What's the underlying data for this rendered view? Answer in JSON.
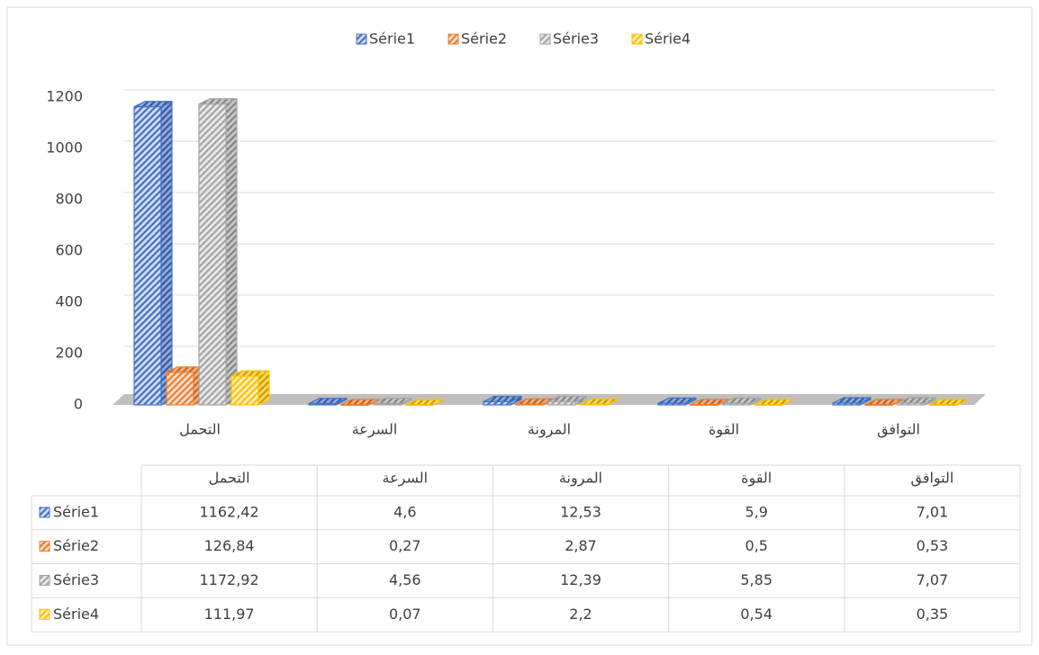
{
  "chart_data": {
    "type": "bar3d",
    "categories": [
      "التحمل",
      "السرعة",
      "المرونة",
      "القوة",
      "التوافق"
    ],
    "series": [
      {
        "name": "Série1",
        "color": "#4472c4",
        "values": [
          1162.42,
          4.6,
          12.53,
          5.9,
          7.01
        ],
        "value_labels": [
          "1162,42",
          "4,6",
          "12,53",
          "5,9",
          "7,01"
        ]
      },
      {
        "name": "Série2",
        "color": "#ed7d31",
        "values": [
          126.84,
          0.27,
          2.87,
          0.5,
          0.53
        ],
        "value_labels": [
          "126,84",
          "0,27",
          "2,87",
          "0,5",
          "0,53"
        ]
      },
      {
        "name": "Série3",
        "color": "#a5a5a5",
        "values": [
          1172.92,
          4.56,
          12.39,
          5.85,
          7.07
        ],
        "value_labels": [
          "1172,92",
          "4,56",
          "12,39",
          "5,85",
          "7,07"
        ]
      },
      {
        "name": "Série4",
        "color": "#ffc000",
        "values": [
          111.97,
          0.07,
          2.2,
          0.54,
          0.35
        ],
        "value_labels": [
          "111,97",
          "0,07",
          "2,2",
          "0,54",
          "0,35"
        ]
      }
    ],
    "ylim": [
      0,
      1200
    ],
    "yticks": [
      0,
      200,
      400,
      600,
      800,
      1000,
      1200
    ],
    "grid": true,
    "legend": "top",
    "data_table": true
  }
}
